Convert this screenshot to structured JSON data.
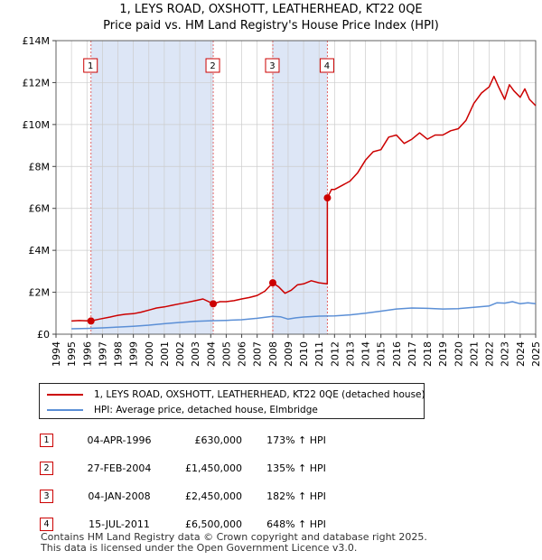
{
  "title_line1": "1, LEYS ROAD, OXSHOTT, LEATHERHEAD, KT22 0QE",
  "title_line2": "Price paid vs. HM Land Registry's House Price Index (HPI)",
  "chart_data": {
    "type": "line",
    "title": "Price paid vs. HM Land Registry's House Price Index (HPI)",
    "xlabel": "",
    "ylabel": "",
    "xlim": [
      1994,
      2025
    ],
    "ylim": [
      0,
      14000000
    ],
    "y_ticks": [
      0,
      2000000,
      4000000,
      6000000,
      8000000,
      10000000,
      12000000,
      14000000
    ],
    "y_tick_labels": [
      "£0",
      "£2M",
      "£4M",
      "£6M",
      "£8M",
      "£10M",
      "£12M",
      "£14M"
    ],
    "x_ticks": [
      1994,
      1995,
      1996,
      1997,
      1998,
      1999,
      2000,
      2001,
      2002,
      2003,
      2004,
      2005,
      2006,
      2007,
      2008,
      2009,
      2010,
      2011,
      2012,
      2013,
      2014,
      2015,
      2016,
      2017,
      2018,
      2019,
      2020,
      2021,
      2022,
      2023,
      2024,
      2025
    ],
    "x_tick_labels": [
      "1994",
      "1995",
      "1996",
      "1997",
      "1998",
      "1999",
      "2000",
      "2001",
      "2002",
      "2003",
      "2004",
      "2005",
      "2006",
      "2007",
      "2008",
      "2009",
      "2010",
      "2011",
      "2012",
      "2013",
      "2014",
      "2015",
      "2016",
      "2017",
      "2018",
      "2019",
      "2020",
      "2021",
      "2022",
      "2023",
      "2024",
      "2025"
    ],
    "grid": true,
    "shaded_periods": [
      [
        1996.26,
        2004.16
      ],
      [
        2008.01,
        2011.54
      ]
    ],
    "series": [
      {
        "name": "1, LEYS ROAD, OXSHOTT, LEATHERHEAD, KT22 0QE (detached house)",
        "color": "#cc0000",
        "x": [
          1995.0,
          1995.5,
          1996.26,
          1996.8,
          1997.5,
          1998.0,
          1998.5,
          1999.0,
          1999.5,
          2000.0,
          2000.5,
          2001.0,
          2001.5,
          2002.0,
          2002.5,
          2003.0,
          2003.5,
          2004.16,
          2004.6,
          2005.0,
          2005.5,
          2006.0,
          2006.5,
          2007.0,
          2007.5,
          2008.01,
          2008.4,
          2008.8,
          2009.2,
          2009.6,
          2010.0,
          2010.5,
          2011.0,
          2011.53,
          2011.54,
          2011.8,
          2012.0,
          2012.5,
          2013.0,
          2013.5,
          2014.0,
          2014.5,
          2015.0,
          2015.5,
          2016.0,
          2016.5,
          2017.0,
          2017.5,
          2018.0,
          2018.5,
          2019.0,
          2019.5,
          2020.0,
          2020.5,
          2021.0,
          2021.5,
          2022.0,
          2022.3,
          2022.6,
          2023.0,
          2023.3,
          2023.6,
          2024.0,
          2024.3,
          2024.6,
          2025.0
        ],
        "y": [
          630000,
          650000,
          630000,
          720000,
          820000,
          900000,
          950000,
          980000,
          1050000,
          1150000,
          1250000,
          1300000,
          1380000,
          1450000,
          1520000,
          1600000,
          1680000,
          1450000,
          1550000,
          1550000,
          1600000,
          1680000,
          1750000,
          1850000,
          2050000,
          2450000,
          2250000,
          1950000,
          2100000,
          2350000,
          2400000,
          2550000,
          2450000,
          2400000,
          6500000,
          6900000,
          6900000,
          7100000,
          7300000,
          7700000,
          8300000,
          8700000,
          8800000,
          9400000,
          9500000,
          9100000,
          9300000,
          9600000,
          9300000,
          9500000,
          9500000,
          9700000,
          9800000,
          10200000,
          11000000,
          11500000,
          11800000,
          12300000,
          11800000,
          11200000,
          11900000,
          11600000,
          11300000,
          11700000,
          11200000,
          10900000
        ]
      },
      {
        "name": "HPI: Average price, detached house, Elmbridge",
        "color": "#5b8fd6",
        "x": [
          1995.0,
          1996.0,
          1997.0,
          1998.0,
          1999.0,
          2000.0,
          2001.0,
          2002.0,
          2003.0,
          2004.0,
          2005.0,
          2006.0,
          2007.0,
          2008.0,
          2008.5,
          2009.0,
          2009.5,
          2010.0,
          2011.0,
          2012.0,
          2013.0,
          2014.0,
          2015.0,
          2016.0,
          2017.0,
          2018.0,
          2019.0,
          2020.0,
          2021.0,
          2022.0,
          2022.5,
          2023.0,
          2023.5,
          2024.0,
          2024.5,
          2025.0
        ],
        "y": [
          260000,
          275000,
          300000,
          340000,
          380000,
          430000,
          500000,
          560000,
          610000,
          640000,
          660000,
          690000,
          760000,
          850000,
          830000,
          720000,
          780000,
          820000,
          860000,
          870000,
          920000,
          1000000,
          1100000,
          1200000,
          1250000,
          1230000,
          1200000,
          1220000,
          1280000,
          1350000,
          1500000,
          1480000,
          1550000,
          1450000,
          1500000,
          1450000
        ]
      }
    ],
    "sale_points": [
      {
        "label": "1",
        "x": 1996.26,
        "y": 630000
      },
      {
        "label": "2",
        "x": 2004.16,
        "y": 1450000
      },
      {
        "label": "3",
        "x": 2008.01,
        "y": 2450000
      },
      {
        "label": "4",
        "x": 2011.54,
        "y": 6500000
      }
    ]
  },
  "legend": {
    "property_label": "1, LEYS ROAD, OXSHOTT, LEATHERHEAD, KT22 0QE (detached house)",
    "hpi_label": "HPI: Average price, detached house, Elmbridge"
  },
  "sales": [
    {
      "num": "1",
      "date": "04-APR-1996",
      "price": "£630,000",
      "hpi": "173% ↑ HPI"
    },
    {
      "num": "2",
      "date": "27-FEB-2004",
      "price": "£1,450,000",
      "hpi": "135% ↑ HPI"
    },
    {
      "num": "3",
      "date": "04-JAN-2008",
      "price": "£2,450,000",
      "hpi": "182% ↑ HPI"
    },
    {
      "num": "4",
      "date": "15-JUL-2011",
      "price": "£6,500,000",
      "hpi": "648% ↑ HPI"
    }
  ],
  "footer_line1": "Contains HM Land Registry data © Crown copyright and database right 2025.",
  "footer_line2": "This data is licensed under the Open Government Licence v3.0.",
  "colors": {
    "property": "#cc0000",
    "hpi": "#5b8fd6",
    "shade": "#dde6f6",
    "grid": "#cccccc"
  }
}
